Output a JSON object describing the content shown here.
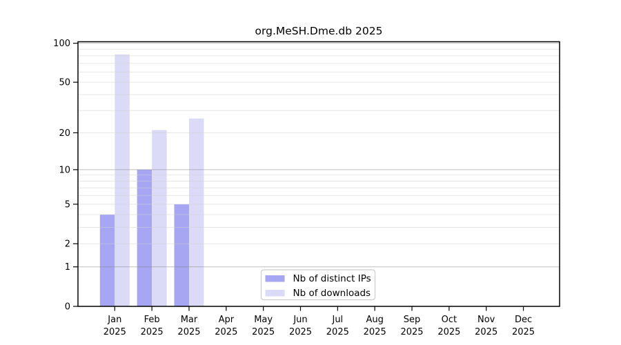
{
  "chart_data": {
    "type": "bar",
    "title": "org.MeSH.Dme.db 2025",
    "scale": "log1p",
    "grid": true,
    "categories": [
      [
        "Jan",
        "2025"
      ],
      [
        "Feb",
        "2025"
      ],
      [
        "Mar",
        "2025"
      ],
      [
        "Apr",
        "2025"
      ],
      [
        "May",
        "2025"
      ],
      [
        "Jun",
        "2025"
      ],
      [
        "Jul",
        "2025"
      ],
      [
        "Aug",
        "2025"
      ],
      [
        "Sep",
        "2025"
      ],
      [
        "Oct",
        "2025"
      ],
      [
        "Nov",
        "2025"
      ],
      [
        "Dec",
        "2025"
      ]
    ],
    "series": [
      {
        "name": "Nb of distinct IPs",
        "color": "#a6a6f2",
        "values": [
          4,
          10,
          5,
          0,
          0,
          0,
          0,
          0,
          0,
          0,
          0,
          0
        ]
      },
      {
        "name": "Nb of downloads",
        "color": "#dbdbf8",
        "values": [
          82,
          21,
          26,
          0,
          0,
          0,
          0,
          0,
          0,
          0,
          0,
          0
        ]
      }
    ],
    "y_ticks": [
      0,
      1,
      2,
      5,
      10,
      20,
      50,
      100
    ],
    "major_grid_values": [
      1,
      10,
      100
    ],
    "minor_grid_values": [
      2,
      3,
      4,
      5,
      6,
      7,
      8,
      9,
      20,
      30,
      40,
      50,
      60,
      70,
      80,
      90
    ],
    "ylim": [
      0,
      103
    ],
    "xlabel": "",
    "ylabel": "",
    "legend_position": "lower center",
    "colors": {
      "frame": "#000000",
      "major_grid": "#808080",
      "minor_grid": "#d0d0d0",
      "legend_border": "#cccccc",
      "background": "#ffffff"
    }
  }
}
